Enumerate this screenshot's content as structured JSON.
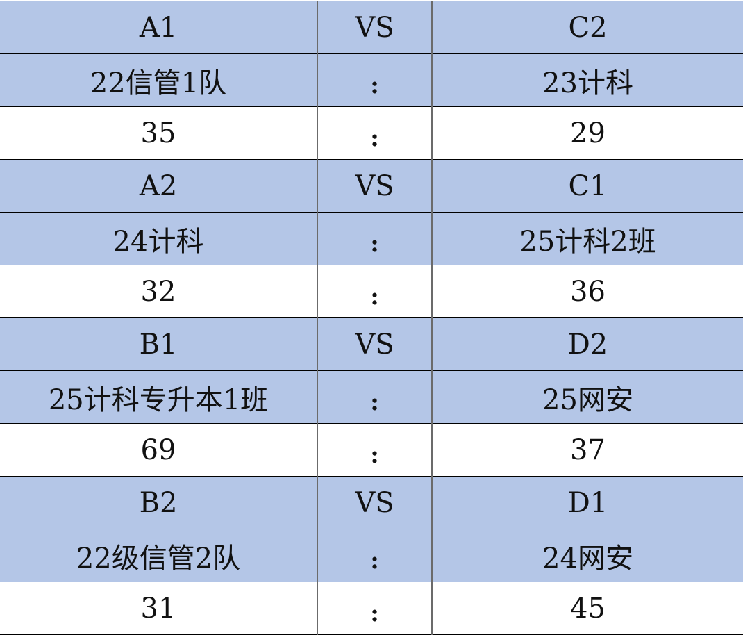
{
  "colors": {
    "header_fill": "#b4c6e7",
    "score_fill": "#ffffff"
  },
  "matches": [
    {
      "left_seed": "A1",
      "vs": "VS",
      "right_seed": "C2",
      "left_team": "22信管1队",
      "sep": ":",
      "right_team": "23计科",
      "left_score": "35",
      "right_score": "29"
    },
    {
      "left_seed": "A2",
      "vs": "VS",
      "right_seed": "C1",
      "left_team": "24计科",
      "sep": ":",
      "right_team": "25计科2班",
      "left_score": "32",
      "right_score": "36"
    },
    {
      "left_seed": "B1",
      "vs": "VS",
      "right_seed": "D2",
      "left_team": "25计科专升本1班",
      "sep": ":",
      "right_team": "25网安",
      "left_score": "69",
      "right_score": "37"
    },
    {
      "left_seed": "B2",
      "vs": "VS",
      "right_seed": "D1",
      "left_team": "22级信管2队",
      "sep": ":",
      "right_team": "24网安",
      "left_score": "31",
      "right_score": "45"
    }
  ]
}
